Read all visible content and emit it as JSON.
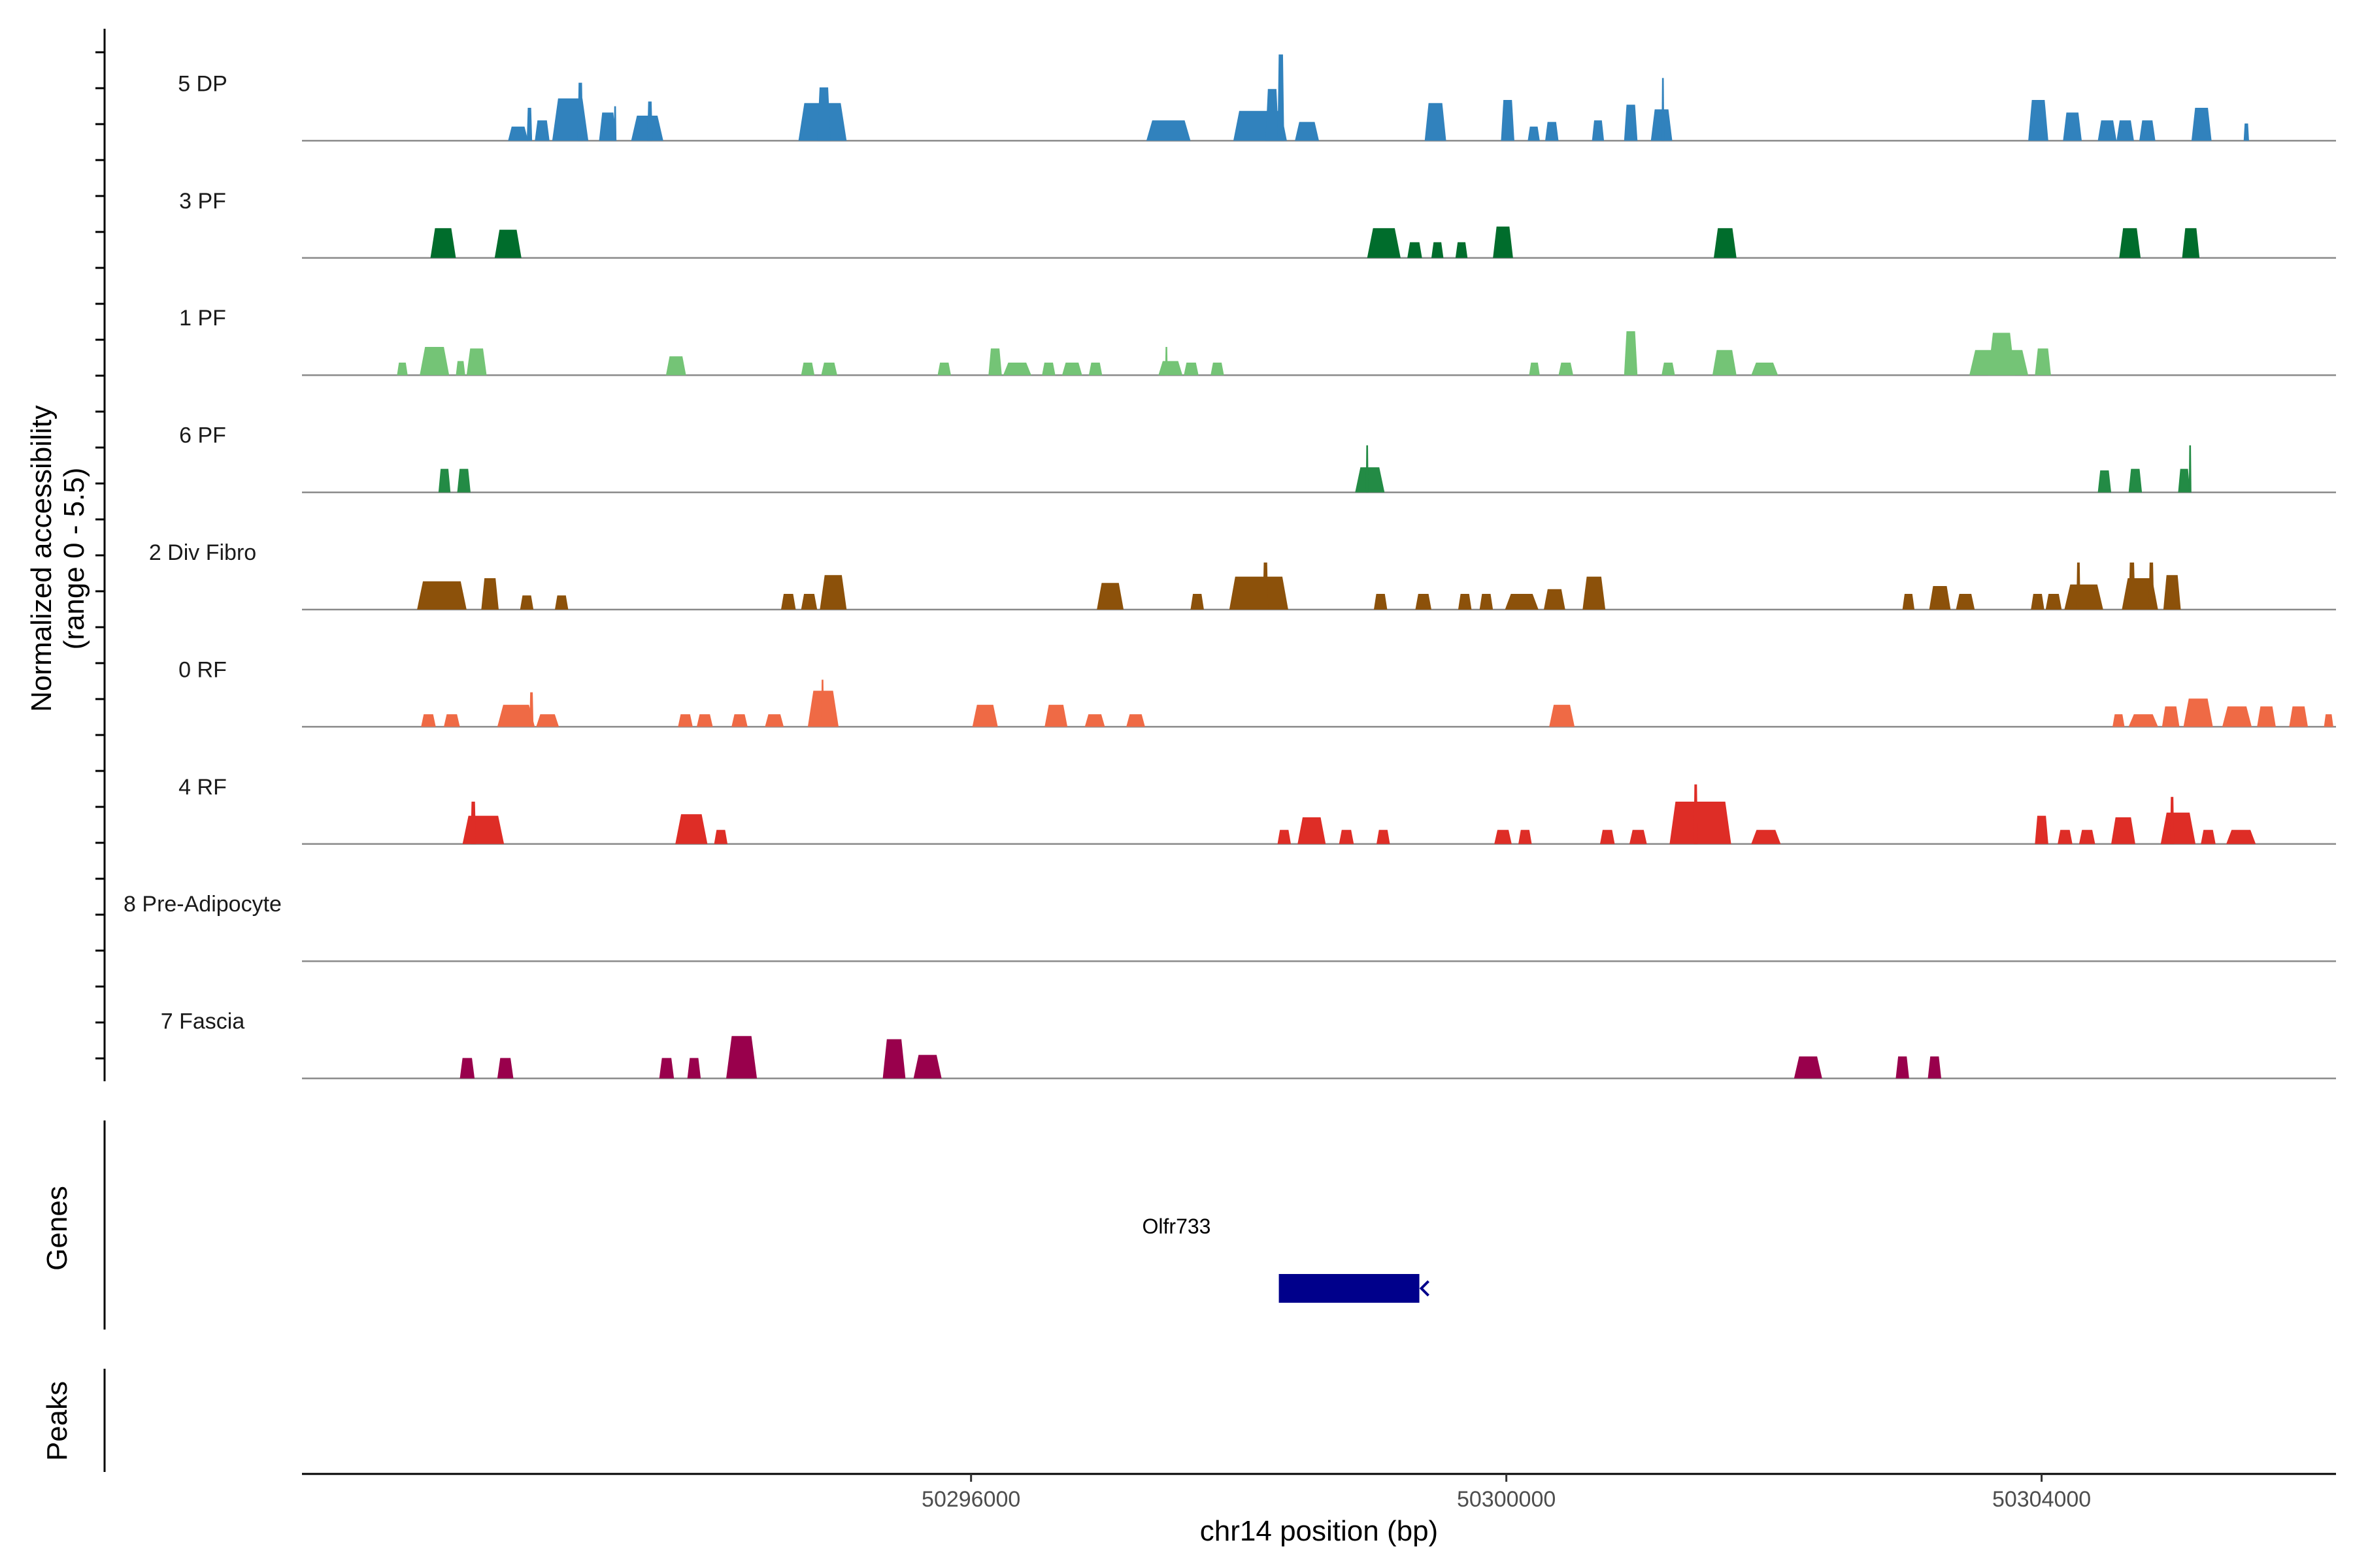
{
  "chart_data": {
    "type": "area",
    "title": "",
    "ylabel_line1": "Normalized accessibility",
    "ylabel_line2": "(range 0 - 5.5)",
    "ylim": [
      0,
      5.5
    ],
    "xlabel": "chr14 position (bp)",
    "xlim": [
      50291000,
      50306200
    ],
    "xticks": [
      50296000,
      50300000,
      50304000
    ],
    "xtick_labels": [
      "50296000",
      "50300000",
      "50304000"
    ],
    "genes_label": "Genes",
    "peaks_label": "Peaks",
    "gene": {
      "name": "Olfr733",
      "start": 50298300,
      "end": 50299350,
      "strand": "-",
      "color": "#00008b"
    },
    "tracks": [
      {
        "name": "5 DP",
        "color": "#3182bd",
        "peaks": [
          [
            50292540,
            50292690,
            0.9
          ],
          [
            50292680,
            50292720,
            2.1
          ],
          [
            50292740,
            50292850,
            1.3
          ],
          [
            50292870,
            50293140,
            2.7
          ],
          [
            50293060,
            50293100,
            3.7
          ],
          [
            50293220,
            50293350,
            1.8
          ],
          [
            50293330,
            50293350,
            2.2
          ],
          [
            50293460,
            50293700,
            1.6
          ],
          [
            50293580,
            50293620,
            2.5
          ],
          [
            50294710,
            50295070,
            2.4
          ],
          [
            50294850,
            50294950,
            3.4
          ],
          [
            50297310,
            50297640,
            1.3
          ],
          [
            50297960,
            50298360,
            1.9
          ],
          [
            50298200,
            50298300,
            3.3
          ],
          [
            50298290,
            50298340,
            5.5
          ],
          [
            50298420,
            50298600,
            1.2
          ],
          [
            50299390,
            50299550,
            2.4
          ],
          [
            50299960,
            50300060,
            2.6
          ],
          [
            50300160,
            50300250,
            0.9
          ],
          [
            50300290,
            50300390,
            1.2
          ],
          [
            50300640,
            50300730,
            1.3
          ],
          [
            50300880,
            50300980,
            2.3
          ],
          [
            50301080,
            50301240,
            2.0
          ],
          [
            50301160,
            50301180,
            4.0
          ],
          [
            50303900,
            50304050,
            2.6
          ],
          [
            50304160,
            50304300,
            1.8
          ],
          [
            50304420,
            50304560,
            1.3
          ],
          [
            50304560,
            50304690,
            1.3
          ],
          [
            50304730,
            50304850,
            1.3
          ],
          [
            50305120,
            50305270,
            2.1
          ],
          [
            50305510,
            50305550,
            1.1
          ]
        ]
      },
      {
        "name": "3 PF",
        "color": "#006d2c",
        "peaks": [
          [
            50291960,
            50292150,
            1.9
          ],
          [
            50292440,
            50292640,
            1.8
          ],
          [
            50298960,
            50299210,
            1.9
          ],
          [
            50299260,
            50299370,
            1.0
          ],
          [
            50299440,
            50299530,
            1.0
          ],
          [
            50299620,
            50299710,
            1.0
          ],
          [
            50299900,
            50300050,
            2.0
          ],
          [
            50301550,
            50301720,
            1.9
          ],
          [
            50304580,
            50304740,
            1.9
          ],
          [
            50305050,
            50305180,
            1.9
          ]
        ]
      },
      {
        "name": "1 PF",
        "color": "#74c476",
        "peaks": [
          [
            50291710,
            50291790,
            0.8
          ],
          [
            50291880,
            50292100,
            1.8
          ],
          [
            50292150,
            50292220,
            0.9
          ],
          [
            50292230,
            50292380,
            1.7
          ],
          [
            50293720,
            50293870,
            1.2
          ],
          [
            50294730,
            50294830,
            0.8
          ],
          [
            50294880,
            50295000,
            0.8
          ],
          [
            50295750,
            50295850,
            0.8
          ],
          [
            50296130,
            50296230,
            1.7
          ],
          [
            50296240,
            50296450,
            0.8
          ],
          [
            50296530,
            50296630,
            0.8
          ],
          [
            50296680,
            50296830,
            0.8
          ],
          [
            50296880,
            50296980,
            0.8
          ],
          [
            50297400,
            50297580,
            0.9
          ],
          [
            50297450,
            50297460,
            1.8
          ],
          [
            50297590,
            50297700,
            0.8
          ],
          [
            50297790,
            50297890,
            0.8
          ],
          [
            50300170,
            50300250,
            0.8
          ],
          [
            50300390,
            50300500,
            0.8
          ],
          [
            50300880,
            50300980,
            2.8
          ],
          [
            50301160,
            50301260,
            0.8
          ],
          [
            50301540,
            50301720,
            1.6
          ],
          [
            50301830,
            50302030,
            0.8
          ],
          [
            50303460,
            50303900,
            1.6
          ],
          [
            50303600,
            50303800,
            2.7
          ],
          [
            50303950,
            50304070,
            1.7
          ]
        ]
      },
      {
        "name": "6 PF",
        "color": "#238b45",
        "peaks": [
          [
            50292020,
            50292110,
            1.5
          ],
          [
            50292160,
            50292260,
            1.5
          ],
          [
            50298870,
            50299090,
            1.6
          ],
          [
            50298950,
            50298970,
            3.0
          ],
          [
            50304420,
            50304520,
            1.4
          ],
          [
            50304650,
            50304750,
            1.5
          ],
          [
            50305020,
            50305110,
            1.5
          ],
          [
            50305100,
            50305110,
            3.0
          ]
        ]
      },
      {
        "name": "2 Div Fibro",
        "color": "#8c510a",
        "peaks": [
          [
            50291860,
            50292230,
            1.8
          ],
          [
            50292340,
            50292470,
            2.0
          ],
          [
            50292630,
            50292730,
            0.9
          ],
          [
            50292890,
            50292990,
            0.9
          ],
          [
            50294580,
            50294690,
            1.0
          ],
          [
            50294730,
            50294850,
            1.0
          ],
          [
            50294870,
            50295070,
            2.2
          ],
          [
            50296940,
            50297140,
            1.7
          ],
          [
            50297640,
            50297740,
            1.0
          ],
          [
            50297930,
            50298370,
            2.1
          ],
          [
            50298180,
            50298220,
            3.0
          ],
          [
            50299010,
            50299110,
            1.0
          ],
          [
            50299320,
            50299440,
            1.0
          ],
          [
            50299640,
            50299740,
            1.0
          ],
          [
            50299800,
            50299900,
            1.0
          ],
          [
            50299990,
            50300240,
            1.0
          ],
          [
            50300280,
            50300440,
            1.3
          ],
          [
            50300570,
            50300740,
            2.1
          ],
          [
            50302960,
            50303050,
            1.0
          ],
          [
            50303160,
            50303320,
            1.5
          ],
          [
            50303360,
            50303500,
            1.0
          ],
          [
            50303920,
            50304020,
            1.0
          ],
          [
            50304030,
            50304150,
            1.0
          ],
          [
            50304170,
            50304460,
            1.6
          ],
          [
            50304260,
            50304290,
            3.0
          ],
          [
            50304600,
            50304870,
            2.0
          ],
          [
            50304650,
            50304700,
            3.0
          ],
          [
            50304800,
            50304840,
            3.0
          ],
          [
            50304910,
            50305040,
            2.2
          ]
        ]
      },
      {
        "name": "0 RF",
        "color": "#ef6a45",
        "peaks": [
          [
            50291890,
            50292000,
            0.8
          ],
          [
            50292060,
            50292180,
            0.8
          ],
          [
            50292460,
            50292740,
            1.4
          ],
          [
            50292700,
            50292730,
            2.2
          ],
          [
            50292750,
            50292920,
            0.8
          ],
          [
            50293810,
            50293920,
            0.8
          ],
          [
            50293950,
            50294070,
            0.8
          ],
          [
            50294210,
            50294330,
            0.8
          ],
          [
            50294460,
            50294600,
            0.8
          ],
          [
            50294780,
            50295010,
            2.3
          ],
          [
            50294880,
            50294900,
            3.0
          ],
          [
            50296010,
            50296200,
            1.4
          ],
          [
            50296550,
            50296720,
            1.4
          ],
          [
            50296850,
            50297000,
            0.8
          ],
          [
            50297160,
            50297300,
            0.8
          ],
          [
            50300320,
            50300510,
            1.4
          ],
          [
            50304530,
            50304620,
            0.8
          ],
          [
            50304650,
            50304870,
            0.8
          ],
          [
            50304900,
            50305030,
            1.3
          ],
          [
            50305060,
            50305280,
            1.8
          ],
          [
            50305350,
            50305570,
            1.3
          ],
          [
            50305610,
            50305750,
            1.3
          ],
          [
            50305850,
            50305990,
            1.3
          ],
          [
            50306110,
            50306180,
            0.8
          ]
        ]
      },
      {
        "name": "4 RF",
        "color": "#de2d26",
        "peaks": [
          [
            50292200,
            50292510,
            1.8
          ],
          [
            50292260,
            50292300,
            2.7
          ],
          [
            50293790,
            50294030,
            1.9
          ],
          [
            50294080,
            50294180,
            0.9
          ],
          [
            50298290,
            50298390,
            0.9
          ],
          [
            50298440,
            50298650,
            1.7
          ],
          [
            50298750,
            50298860,
            0.9
          ],
          [
            50299030,
            50299130,
            0.9
          ],
          [
            50299910,
            50300040,
            0.9
          ],
          [
            50300090,
            50300190,
            0.9
          ],
          [
            50300700,
            50300810,
            0.9
          ],
          [
            50300920,
            50301050,
            0.9
          ],
          [
            50301220,
            50301680,
            2.7
          ],
          [
            50301400,
            50301430,
            3.8
          ],
          [
            50301830,
            50302050,
            0.9
          ],
          [
            50303950,
            50304050,
            1.8
          ],
          [
            50304120,
            50304230,
            0.9
          ],
          [
            50304280,
            50304400,
            0.9
          ],
          [
            50304520,
            50304700,
            1.7
          ],
          [
            50304890,
            50305150,
            2.0
          ],
          [
            50304960,
            50304990,
            3.0
          ],
          [
            50305190,
            50305300,
            0.9
          ],
          [
            50305380,
            50305600,
            0.9
          ]
        ]
      },
      {
        "name": "8 Pre-Adipocyte",
        "color": "#6a3d9a",
        "peaks": []
      },
      {
        "name": "7 Fascia",
        "color": "#99004c",
        "peaks": [
          [
            50292180,
            50292290,
            1.3
          ],
          [
            50292460,
            50292580,
            1.3
          ],
          [
            50293670,
            50293780,
            1.3
          ],
          [
            50293880,
            50293980,
            1.3
          ],
          [
            50294170,
            50294400,
            2.7
          ],
          [
            50295340,
            50295510,
            2.5
          ],
          [
            50295570,
            50295780,
            1.5
          ],
          [
            50302150,
            50302360,
            1.4
          ],
          [
            50302910,
            50303010,
            1.4
          ],
          [
            50303150,
            50303250,
            1.4
          ]
        ]
      }
    ]
  }
}
